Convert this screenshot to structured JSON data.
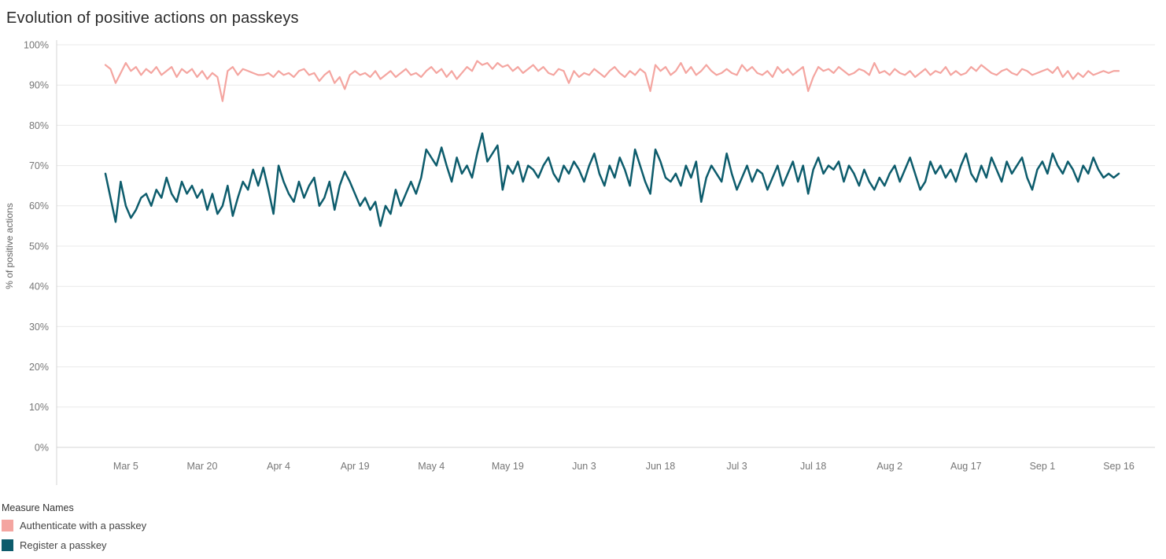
{
  "legend": {
    "title": "Measure Names"
  },
  "chart_data": {
    "type": "line",
    "title": "Evolution of positive actions on passkeys",
    "xlabel": "",
    "ylabel": "% of positive actions",
    "ylim": [
      0,
      100
    ],
    "grid": true,
    "legend_position": "bottom-left",
    "colors": {
      "authenticate": "#F4A5A0",
      "register": "#0D5C6C",
      "grid": "#e9e9e9",
      "axis": "#d4d4d4",
      "tick_text": "#767676"
    },
    "y_ticks": [
      0,
      10,
      20,
      30,
      40,
      50,
      60,
      70,
      80,
      90,
      100
    ],
    "x_ticks": [
      {
        "label": "Mar 5",
        "i": 4
      },
      {
        "label": "Mar 20",
        "i": 19
      },
      {
        "label": "Apr 4",
        "i": 34
      },
      {
        "label": "Apr 19",
        "i": 49
      },
      {
        "label": "May 4",
        "i": 64
      },
      {
        "label": "May 19",
        "i": 79
      },
      {
        "label": "Jun 3",
        "i": 94
      },
      {
        "label": "Jun 18",
        "i": 109
      },
      {
        "label": "Jul 3",
        "i": 124
      },
      {
        "label": "Jul 18",
        "i": 139
      },
      {
        "label": "Aug 2",
        "i": 154
      },
      {
        "label": "Aug 17",
        "i": 169
      },
      {
        "label": "Sep 1",
        "i": 184
      },
      {
        "label": "Sep 16",
        "i": 199
      }
    ],
    "x_range_days": 200,
    "series": [
      {
        "name": "Authenticate with a passkey",
        "color": "#F4A5A0",
        "values": [
          95,
          94,
          90.5,
          93,
          95.5,
          93.5,
          94.5,
          92.5,
          94,
          93,
          94.5,
          92.5,
          93.5,
          94.5,
          92,
          94,
          93,
          94,
          92,
          93.5,
          91.5,
          93,
          92,
          86,
          93.5,
          94.5,
          92.5,
          94,
          93.5,
          93,
          92.5,
          92.5,
          93,
          92,
          93.5,
          92.5,
          93,
          92,
          93.5,
          94,
          92.5,
          93,
          91,
          92.5,
          93.5,
          90.5,
          92,
          89,
          92.5,
          93.5,
          92.5,
          93,
          92,
          93.5,
          91.5,
          92.5,
          93.5,
          92,
          93,
          94,
          92.5,
          93,
          92,
          93.5,
          94.5,
          93,
          94,
          92,
          93.5,
          91.5,
          93,
          94.5,
          93.5,
          96,
          95,
          95.5,
          94,
          95.5,
          94.5,
          95,
          93.5,
          94.5,
          93,
          94,
          95,
          93.5,
          94.5,
          93,
          92.5,
          94,
          93.5,
          90.5,
          93.5,
          92,
          93,
          92.5,
          94,
          93,
          92,
          93.5,
          94.5,
          93,
          92,
          93.5,
          92.5,
          94,
          93,
          88.5,
          95,
          93.5,
          94.5,
          92.5,
          93.5,
          95.5,
          93,
          94.5,
          92.5,
          93.5,
          95,
          93.5,
          92.5,
          93,
          94,
          93,
          92.5,
          95,
          93.5,
          94.5,
          93,
          92.5,
          93.5,
          92,
          94.5,
          93,
          94,
          92.5,
          93.5,
          94.5,
          88.5,
          92,
          94.5,
          93.5,
          94,
          93,
          94.5,
          93.5,
          92.5,
          93,
          94,
          93.5,
          92.5,
          95.5,
          93,
          93.5,
          92.5,
          94,
          93,
          92.5,
          93.5,
          92,
          93,
          94,
          92.5,
          93.5,
          93,
          94.5,
          92.5,
          93.5,
          92.5,
          93,
          94.5,
          93.5,
          95,
          94,
          93,
          92.5,
          93.5,
          94,
          93,
          92.5,
          94,
          93.5,
          92.5,
          93,
          93.5,
          94,
          93,
          94.5,
          92,
          93.5,
          91.5,
          93,
          92,
          93.5,
          92.5,
          93,
          93.5,
          93,
          93.5,
          93.5
        ]
      },
      {
        "name": "Register a passkey",
        "color": "#0D5C6C",
        "values": [
          68,
          62,
          56,
          66,
          60,
          57,
          59,
          62,
          63,
          60,
          64,
          62,
          67,
          63,
          61,
          66,
          63,
          65,
          62,
          64,
          59,
          63,
          58,
          60,
          65,
          57.5,
          62,
          66,
          64,
          69,
          65,
          69.5,
          64,
          58,
          70,
          66,
          63,
          61,
          66,
          62,
          65,
          67,
          60,
          62,
          66,
          59,
          65,
          68.5,
          66,
          63,
          60,
          62,
          59,
          61,
          55,
          60,
          58,
          64,
          60,
          63,
          66,
          63,
          67,
          74,
          72,
          70,
          74.5,
          70,
          66,
          72,
          68,
          70,
          67,
          73,
          78,
          71,
          73,
          75,
          64,
          70,
          68,
          71,
          66,
          70,
          69,
          67,
          70,
          72,
          68,
          66,
          70,
          68,
          71,
          69,
          66,
          70,
          73,
          68,
          65,
          70,
          67,
          72,
          69,
          65,
          74,
          70,
          66,
          63,
          74,
          71,
          67,
          66,
          68,
          65,
          70,
          67,
          71,
          61,
          67,
          70,
          68,
          66,
          73,
          68,
          64,
          67,
          70,
          66,
          69,
          68,
          64,
          67,
          70,
          65,
          68,
          71,
          66,
          70,
          63,
          69,
          72,
          68,
          70,
          69,
          71,
          66,
          70,
          68,
          65,
          69,
          66,
          64,
          67,
          65,
          68,
          70,
          66,
          69,
          72,
          68,
          64,
          66,
          71,
          68,
          70,
          67,
          69,
          66,
          70,
          73,
          68,
          66,
          70,
          67,
          72,
          69,
          66,
          71,
          68,
          70,
          72,
          67,
          64,
          69,
          71,
          68,
          73,
          70,
          68,
          71,
          69,
          66,
          70,
          68,
          72,
          69,
          67,
          68,
          67,
          68
        ]
      }
    ]
  }
}
